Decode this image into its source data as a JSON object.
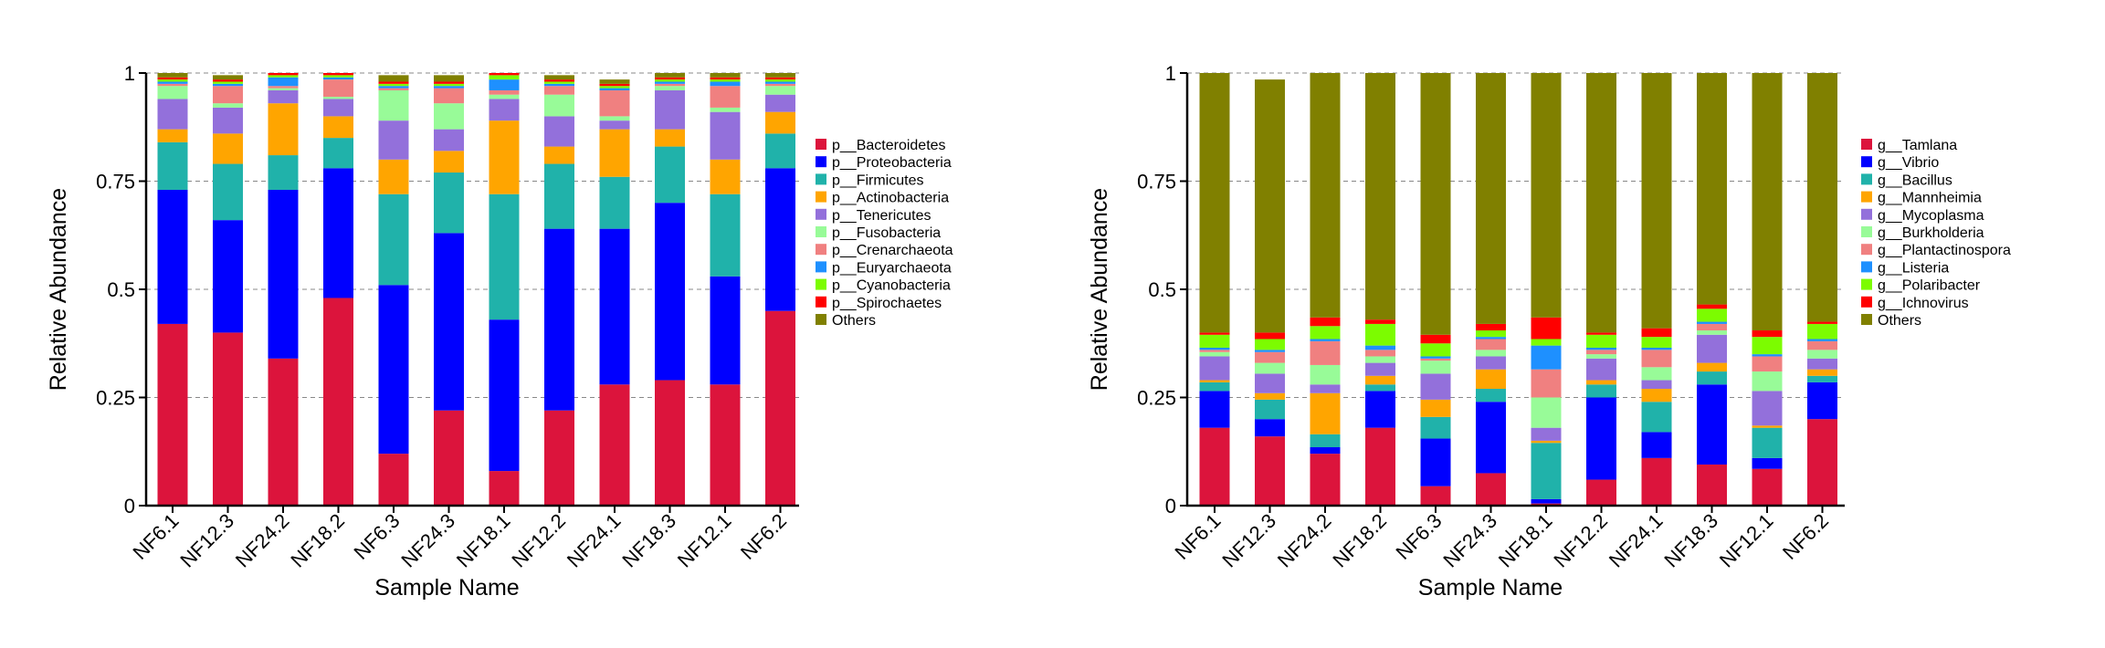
{
  "chart_data": [
    {
      "type": "bar",
      "stacked": true,
      "xlabel": "Sample Name",
      "ylabel": "Relative Abundance",
      "ylim": [
        0,
        1
      ],
      "yticks": [
        "0",
        "0.25",
        "0.5",
        "0.75",
        "1"
      ],
      "grid": "dashed horizontal",
      "legend_position": "right",
      "categories": [
        "NF6.1",
        "NF12.3",
        "NF24.2",
        "NF18.2",
        "NF6.3",
        "NF24.3",
        "NF18.1",
        "NF12.2",
        "NF24.1",
        "NF18.3",
        "NF12.1",
        "NF6.2"
      ],
      "series": [
        {
          "name": "p__Bacteroidetes",
          "color": "#DC143C",
          "values": [
            0.42,
            0.4,
            0.34,
            0.48,
            0.12,
            0.22,
            0.08,
            0.22,
            0.28,
            0.29,
            0.28,
            0.45
          ]
        },
        {
          "name": "p__Proteobacteria",
          "color": "#0000FF",
          "values": [
            0.31,
            0.26,
            0.39,
            0.3,
            0.39,
            0.41,
            0.35,
            0.42,
            0.36,
            0.41,
            0.25,
            0.33
          ]
        },
        {
          "name": "p__Firmicutes",
          "color": "#20B2AA",
          "values": [
            0.11,
            0.13,
            0.08,
            0.07,
            0.21,
            0.14,
            0.29,
            0.15,
            0.12,
            0.13,
            0.19,
            0.08
          ]
        },
        {
          "name": "p__Actinobacteria",
          "color": "#FFA500",
          "values": [
            0.03,
            0.07,
            0.12,
            0.05,
            0.08,
            0.05,
            0.17,
            0.04,
            0.11,
            0.04,
            0.08,
            0.05
          ]
        },
        {
          "name": "p__Tenericutes",
          "color": "#9370DB",
          "values": [
            0.07,
            0.06,
            0.03,
            0.04,
            0.09,
            0.05,
            0.05,
            0.07,
            0.02,
            0.09,
            0.11,
            0.04
          ]
        },
        {
          "name": "p__Fusobacteria",
          "color": "#98FB98",
          "values": [
            0.03,
            0.01,
            0.005,
            0.005,
            0.07,
            0.06,
            0.01,
            0.05,
            0.01,
            0.01,
            0.01,
            0.02
          ]
        },
        {
          "name": "p__Crenarchaeota",
          "color": "#F08080",
          "values": [
            0.005,
            0.04,
            0.005,
            0.04,
            0.005,
            0.035,
            0.01,
            0.02,
            0.06,
            0.005,
            0.05,
            0.005
          ]
        },
        {
          "name": "p__Euryarchaeota",
          "color": "#1E90FF",
          "values": [
            0.005,
            0.005,
            0.02,
            0.005,
            0.005,
            0.005,
            0.025,
            0.005,
            0.005,
            0.005,
            0.01,
            0.005
          ]
        },
        {
          "name": "p__Cyanobacteria",
          "color": "#7CFC00",
          "values": [
            0.005,
            0.005,
            0.005,
            0.005,
            0.005,
            0.005,
            0.01,
            0.005,
            0.005,
            0.005,
            0.005,
            0.005
          ]
        },
        {
          "name": "p__Spirochaetes",
          "color": "#FF0000",
          "values": [
            0.005,
            0.005,
            0.005,
            0.005,
            0.005,
            0.005,
            0.005,
            0.005,
            0.005,
            0.005,
            0.005,
            0.005
          ]
        },
        {
          "name": "Others",
          "color": "#808000",
          "values": [
            0.01,
            0.01,
            0.015,
            0.01,
            0.015,
            0.015,
            0.02,
            0.01,
            0.01,
            0.01,
            0.01,
            0.01
          ]
        }
      ]
    },
    {
      "type": "bar",
      "stacked": true,
      "xlabel": "Sample Name",
      "ylabel": "Relative Abundance",
      "ylim": [
        0,
        1
      ],
      "yticks": [
        "0",
        "0.25",
        "0.5",
        "0.75",
        "1"
      ],
      "grid": "dashed horizontal",
      "legend_position": "right",
      "categories": [
        "NF6.1",
        "NF12.3",
        "NF24.2",
        "NF18.2",
        "NF6.3",
        "NF24.3",
        "NF18.1",
        "NF12.2",
        "NF24.1",
        "NF18.3",
        "NF12.1",
        "NF6.2"
      ],
      "series": [
        {
          "name": "g__Tamlana",
          "color": "#DC143C",
          "values": [
            0.18,
            0.16,
            0.12,
            0.18,
            0.045,
            0.075,
            0.005,
            0.06,
            0.11,
            0.095,
            0.085,
            0.2
          ]
        },
        {
          "name": "g__Vibrio",
          "color": "#0000FF",
          "values": [
            0.085,
            0.04,
            0.015,
            0.085,
            0.11,
            0.165,
            0.01,
            0.19,
            0.06,
            0.185,
            0.025,
            0.085
          ]
        },
        {
          "name": "g__Bacillus",
          "color": "#20B2AA",
          "values": [
            0.02,
            0.045,
            0.03,
            0.015,
            0.05,
            0.03,
            0.13,
            0.03,
            0.07,
            0.03,
            0.07,
            0.015
          ]
        },
        {
          "name": "g__Mannheimia",
          "color": "#FFA500",
          "values": [
            0.005,
            0.015,
            0.095,
            0.02,
            0.04,
            0.045,
            0.005,
            0.01,
            0.03,
            0.02,
            0.005,
            0.015
          ]
        },
        {
          "name": "g__Mycoplasma",
          "color": "#9370DB",
          "values": [
            0.055,
            0.045,
            0.02,
            0.03,
            0.06,
            0.03,
            0.03,
            0.05,
            0.02,
            0.065,
            0.08,
            0.025
          ]
        },
        {
          "name": "g__Burkholderia",
          "color": "#98FB98",
          "values": [
            0.01,
            0.025,
            0.045,
            0.015,
            0.03,
            0.015,
            0.07,
            0.01,
            0.03,
            0.01,
            0.045,
            0.02
          ]
        },
        {
          "name": "g__Plantactinospora",
          "color": "#F08080",
          "values": [
            0.005,
            0.025,
            0.055,
            0.015,
            0.005,
            0.025,
            0.065,
            0.01,
            0.04,
            0.015,
            0.035,
            0.02
          ]
        },
        {
          "name": "g__Listeria",
          "color": "#1E90FF",
          "values": [
            0.005,
            0.005,
            0.005,
            0.01,
            0.005,
            0.005,
            0.055,
            0.005,
            0.005,
            0.005,
            0.005,
            0.005
          ]
        },
        {
          "name": "g__Polaribacter",
          "color": "#7CFC00",
          "values": [
            0.03,
            0.025,
            0.03,
            0.05,
            0.03,
            0.015,
            0.015,
            0.03,
            0.025,
            0.03,
            0.04,
            0.035
          ]
        },
        {
          "name": "g__Ichnovirus",
          "color": "#FF0000",
          "values": [
            0.005,
            0.015,
            0.02,
            0.01,
            0.02,
            0.015,
            0.05,
            0.005,
            0.02,
            0.01,
            0.015,
            0.005
          ]
        },
        {
          "name": "Others",
          "color": "#808000",
          "values": [
            0.6,
            0.585,
            0.565,
            0.57,
            0.605,
            0.58,
            0.565,
            0.6,
            0.59,
            0.535,
            0.595,
            0.575
          ]
        }
      ]
    }
  ]
}
